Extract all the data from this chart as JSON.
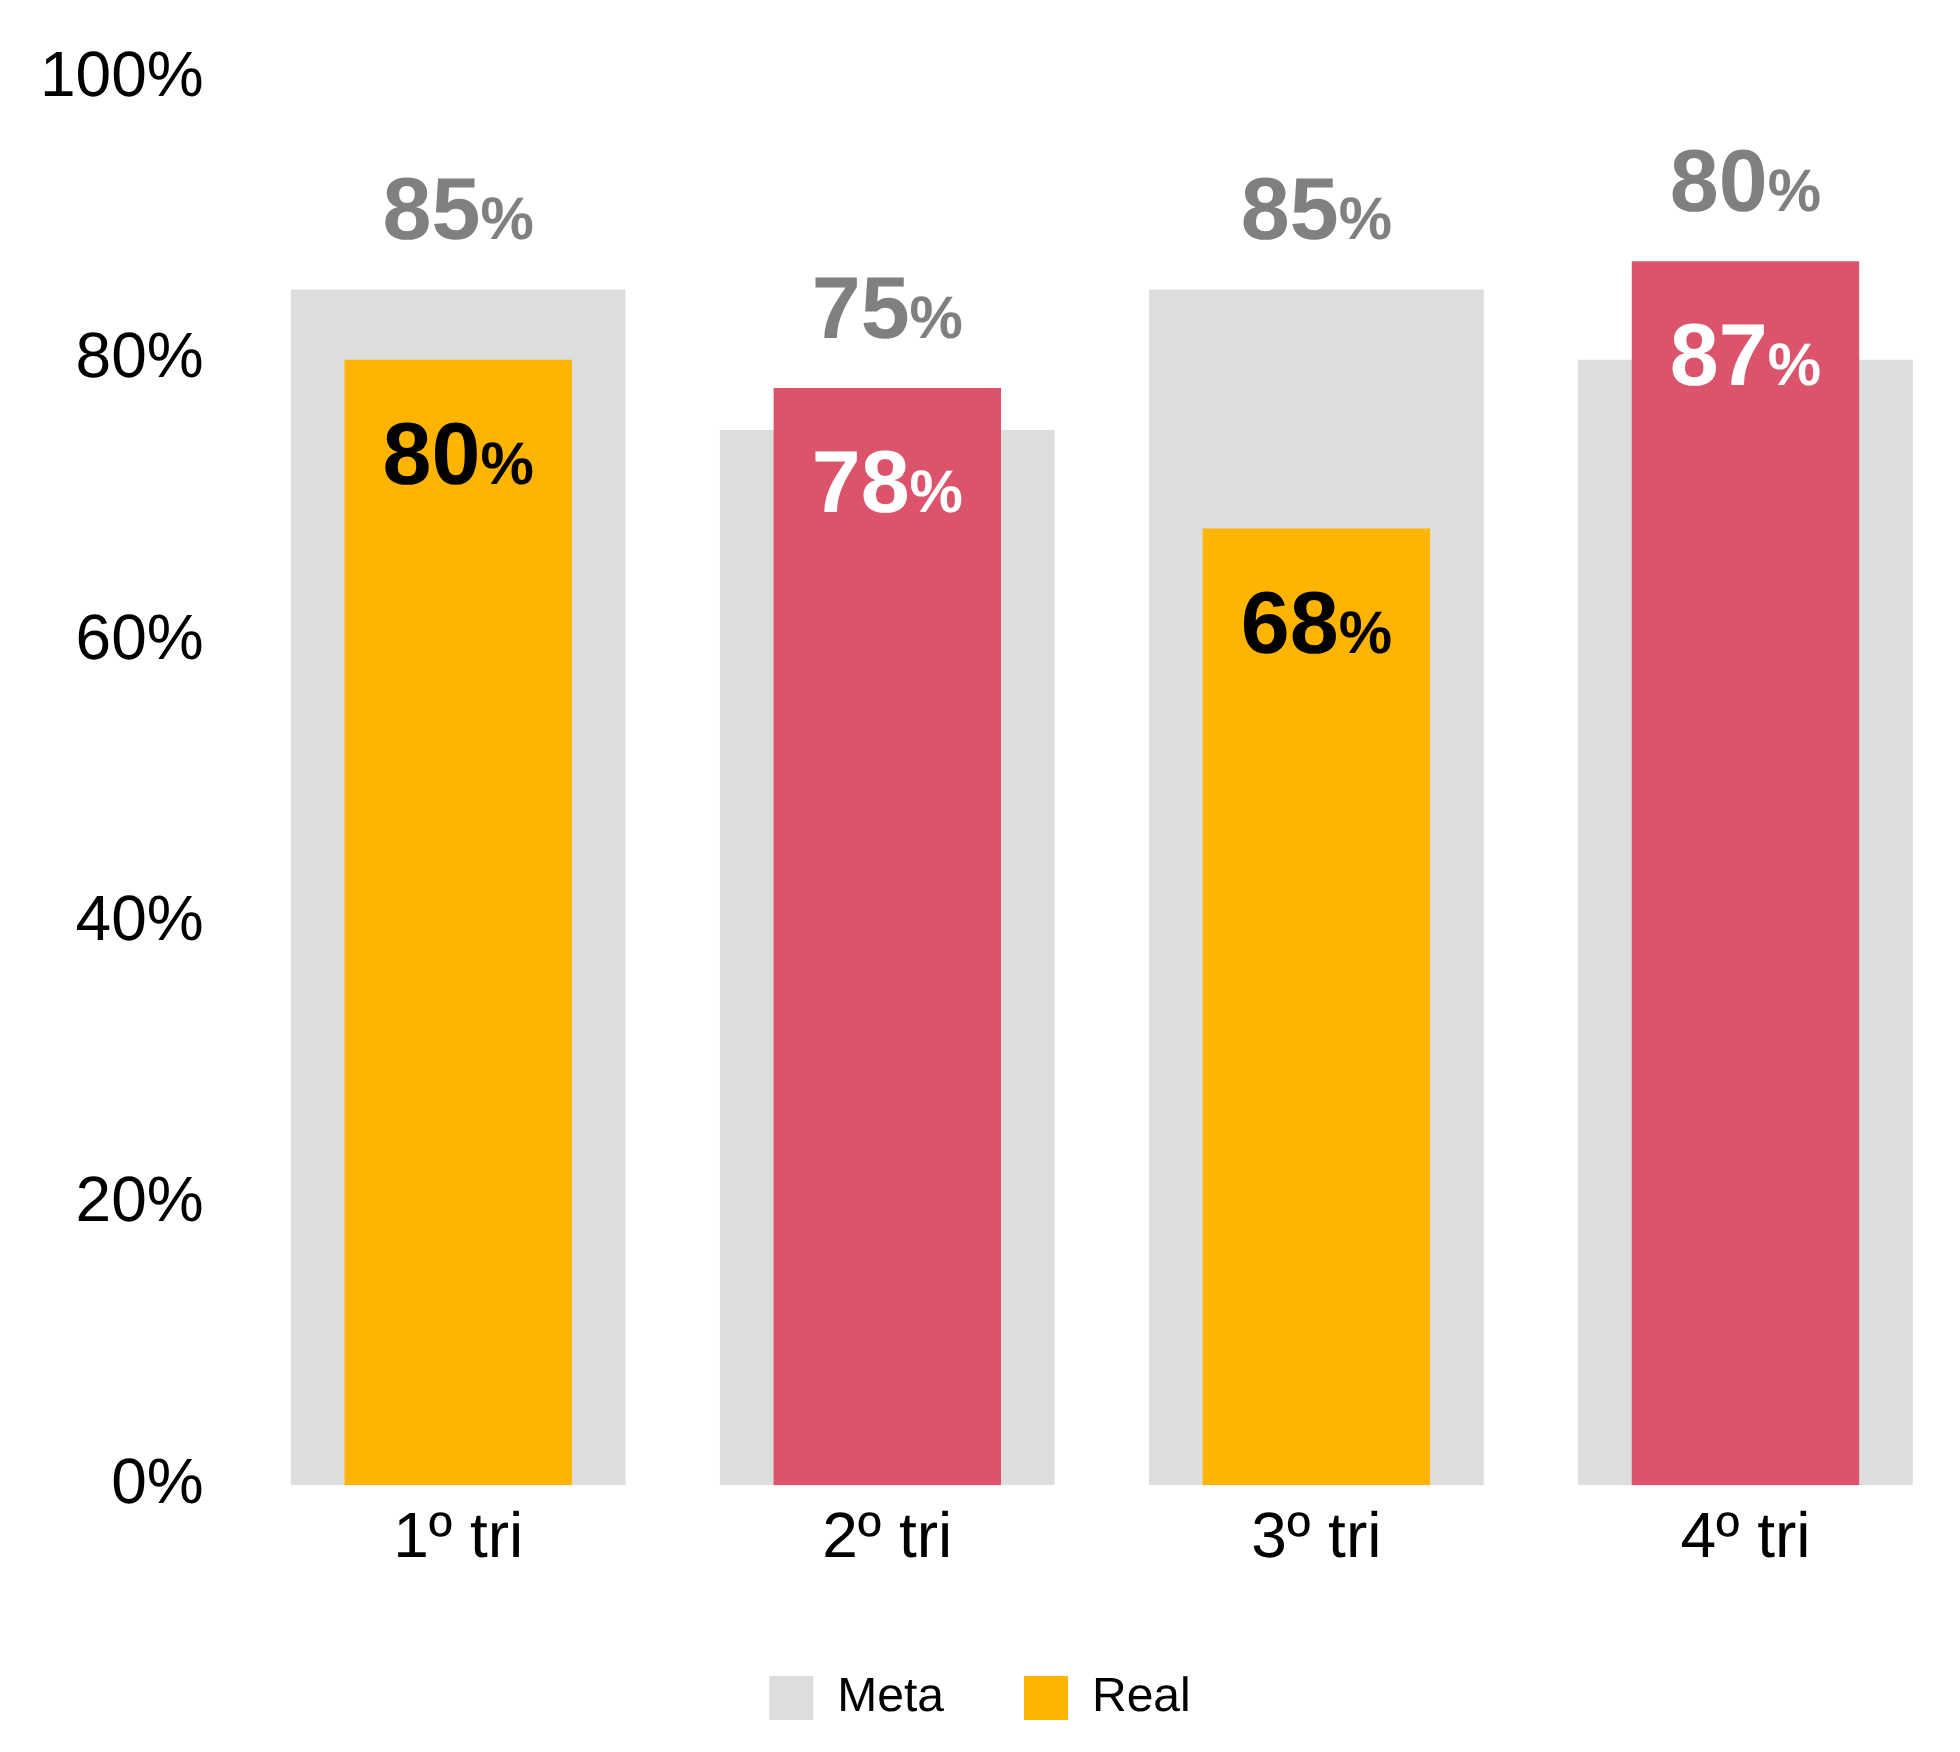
{
  "chart_data": {
    "type": "bar",
    "categories": [
      "1º tri",
      "2º tri",
      "3º tri",
      "4º tri"
    ],
    "series": [
      {
        "name": "Meta",
        "color": "#dddddd",
        "values": [
          85,
          75,
          85,
          80
        ],
        "value_labels": [
          "85%",
          "75%",
          "85%",
          "80%"
        ]
      },
      {
        "name": "Real",
        "colors": [
          "#ffb400",
          "#dc546c",
          "#ffb400",
          "#dc546c"
        ],
        "values": [
          80,
          78,
          68,
          87
        ],
        "value_labels": [
          "80%",
          "78%",
          "68%",
          "87%"
        ]
      }
    ],
    "ylim": [
      0,
      100
    ],
    "yticks": [
      {
        "value": 0,
        "label": "0%"
      },
      {
        "value": 20,
        "label": "20%"
      },
      {
        "value": 40,
        "label": "40%"
      },
      {
        "value": 60,
        "label": "60%"
      },
      {
        "value": 80,
        "label": "80%"
      },
      {
        "value": 100,
        "label": "100%"
      }
    ],
    "grid": false,
    "legend": "bottom"
  }
}
